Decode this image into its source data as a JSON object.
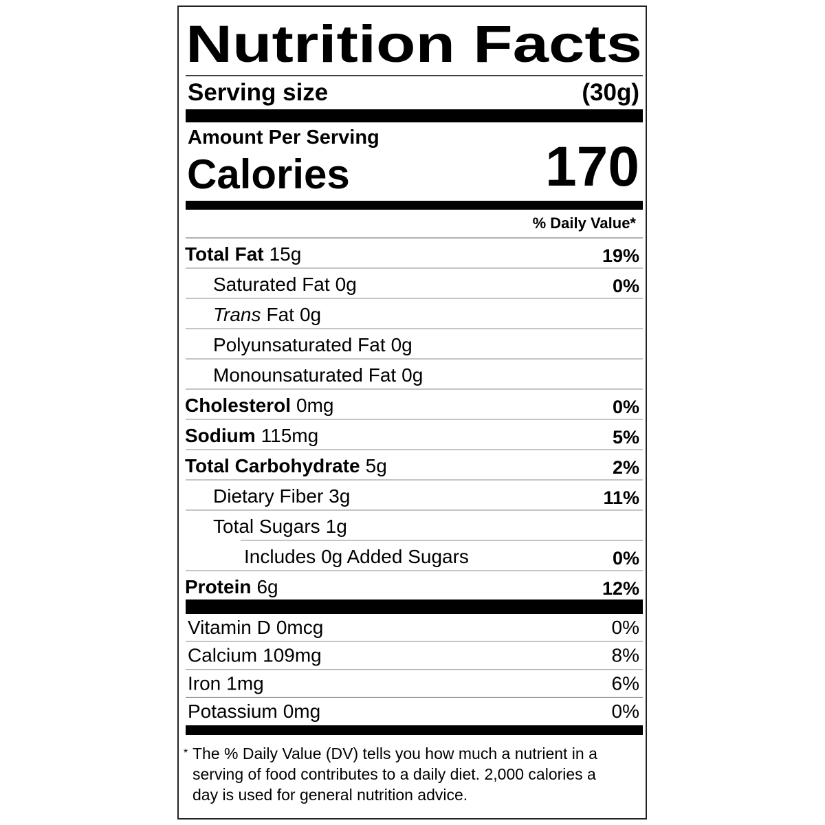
{
  "header": {
    "title": "Nutrition Facts",
    "serving_size_label": "Serving size",
    "serving_size_value": "(30g)"
  },
  "calories": {
    "amount_per_serving": "Amount Per Serving",
    "label": "Calories",
    "value": "170"
  },
  "daily_value_header": "% Daily Value*",
  "nutrients": [
    {
      "name": "Total Fat",
      "amount": "15g",
      "dv": "19%"
    },
    {
      "name": "Saturated Fat",
      "amount": "0g",
      "dv": "0%"
    },
    {
      "name_italic": "Trans",
      "name": "Fat",
      "amount": "0g"
    },
    {
      "name": "Polyunsaturated Fat",
      "amount": "0g"
    },
    {
      "name": "Monounsaturated Fat",
      "amount": "0g"
    },
    {
      "name": "Cholesterol",
      "amount": "0mg",
      "dv": "0%"
    },
    {
      "name": "Sodium",
      "amount": "115mg",
      "dv": "5%"
    },
    {
      "name": "Total Carbohydrate",
      "amount": "5g",
      "dv": "2%"
    },
    {
      "name": "Dietary Fiber",
      "amount": "3g",
      "dv": "11%"
    },
    {
      "name": "Total Sugars",
      "amount": "1g"
    },
    {
      "name": "Includes 0g Added Sugars",
      "dv": "0%"
    },
    {
      "name": "Protein",
      "amount": "6g",
      "dv": "12%"
    }
  ],
  "vitamins": [
    {
      "name": "Vitamin D",
      "amount": "0mcg",
      "dv": "0%"
    },
    {
      "name": "Calcium",
      "amount": "109mg",
      "dv": "8%"
    },
    {
      "name": "Iron",
      "amount": "1mg",
      "dv": "6%"
    },
    {
      "name": "Potassium",
      "amount": "0mg",
      "dv": "0%"
    }
  ],
  "footnote": {
    "asterisk": "*",
    "lines": [
      "The % Daily Value (DV) tells you how much a nutrient in a",
      "serving of food contributes to a daily diet. 2,000 calories a",
      "day is used for general nutrition advice."
    ]
  }
}
